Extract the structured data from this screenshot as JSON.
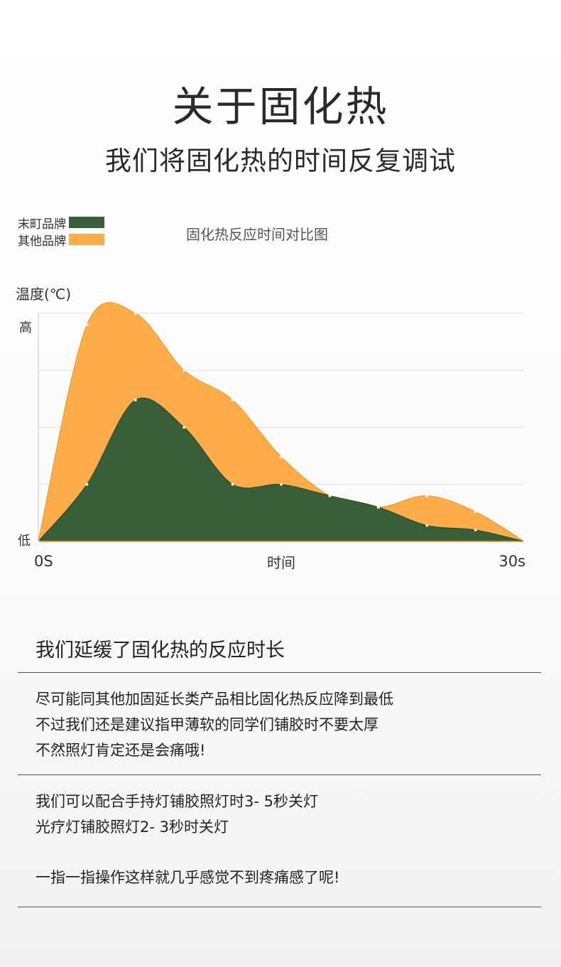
{
  "header": {
    "title": "关于固化热",
    "subtitle": "我们将固化热的时间反复调试"
  },
  "chart_data": {
    "type": "area",
    "title": "固化热反应时间对比图",
    "ylabel": "温度(℃)",
    "xlabel": "时间",
    "x_tick_labels": [
      "0S",
      "30s"
    ],
    "y_tick_labels": [
      "低",
      "高"
    ],
    "xlim": [
      0,
      30
    ],
    "ylim": [
      0,
      100
    ],
    "grid": true,
    "legend_position": "top-left",
    "x": [
      0,
      3,
      6,
      9,
      12,
      15,
      18,
      21,
      24,
      27,
      30
    ],
    "series": [
      {
        "name": "其他品牌",
        "color": "#FFAC4B",
        "values": [
          0,
          95,
          100,
          75,
          62,
          37,
          20,
          15,
          20,
          13,
          0
        ]
      },
      {
        "name": "末町品牌",
        "color": "#3A5E37",
        "values": [
          0,
          25,
          62,
          50,
          25,
          25,
          20,
          15,
          7,
          5,
          0
        ]
      }
    ]
  },
  "section": {
    "heading": "我们延缓了固化热的反应时长",
    "paragraph1": [
      "尽可能同其他加固延长类产品相比固化热反应降到最低",
      "不过我们还是建议指甲薄软的同学们铺胶时不要太厚",
      "不然照灯肯定还是会痛哦!"
    ],
    "paragraph2": [
      "我们可以配合手持灯铺胶照灯时3- 5秒关灯",
      "光疗灯铺胶照灯2- 3秒时关灯"
    ],
    "paragraph3": "一指一指操作这样就几乎感觉不到疼痛感了呢!"
  }
}
